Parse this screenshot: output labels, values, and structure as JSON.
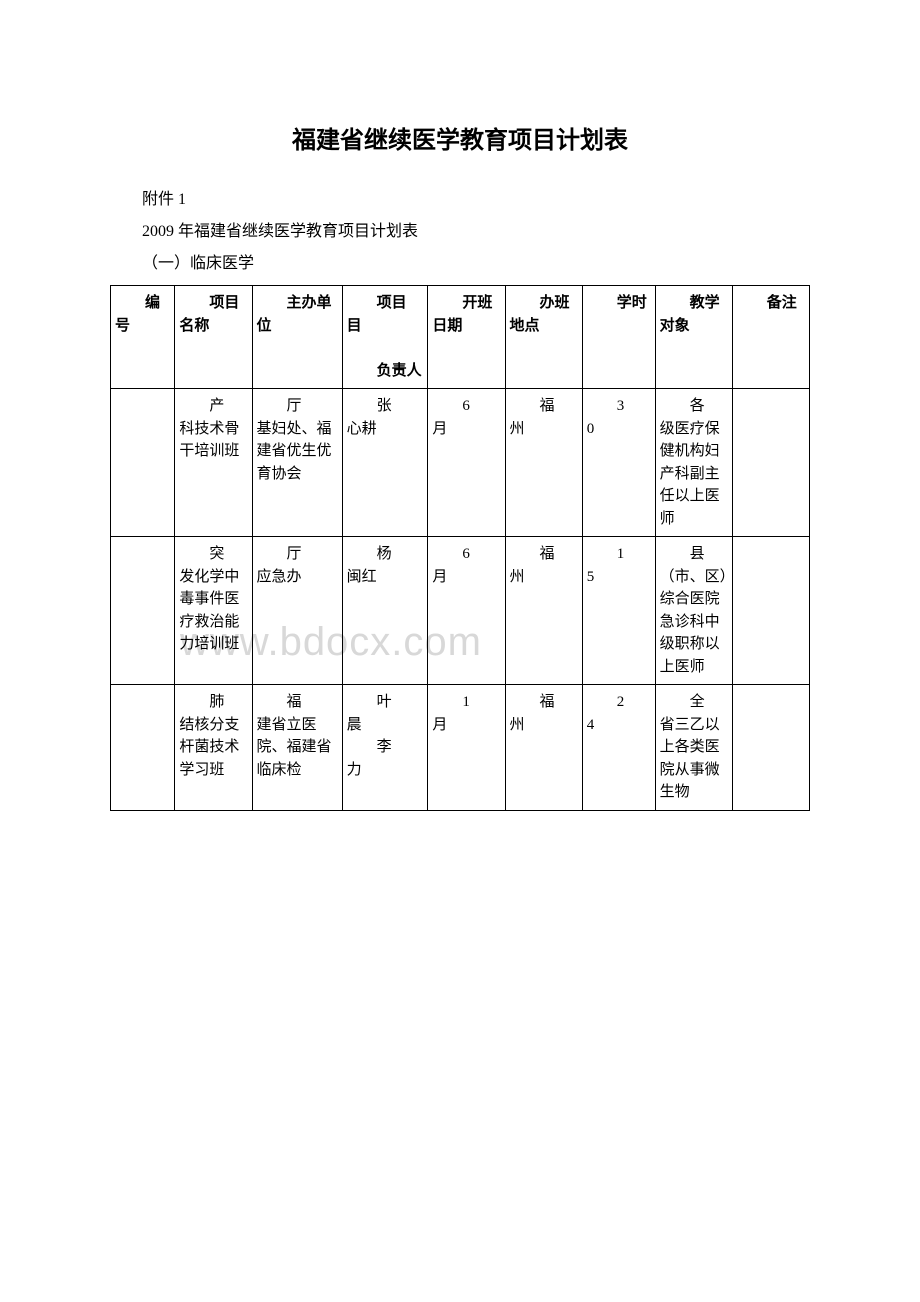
{
  "title": "福建省继续医学教育项目计划表",
  "subtitle1": "附件 1",
  "subtitle2": "2009 年福建省继续医学教育项目计划表",
  "subtitle3": "（一）临床医学",
  "watermark": "www.bdocx.com",
  "table": {
    "headers": [
      "编号",
      "项目名称",
      "主办单位",
      "项目",
      "负责人",
      "开班日期",
      "办班地点",
      "学时",
      "教学对象",
      "备注"
    ],
    "header_line2": "负责人",
    "rows": [
      {
        "col0": "",
        "col1_indent": "产",
        "col1_rest": "科技术骨干培训班",
        "col2_indent": "厅",
        "col2_rest": "基妇处、福建省优生优育协会",
        "col3_indent": "张",
        "col3_rest": "心耕",
        "col4_indent": "6",
        "col4_rest": "月",
        "col5_indent": "福",
        "col5_rest": "州",
        "col6_indent": "3",
        "col6_rest": "0",
        "col7_indent": "各",
        "col7_rest": "级医疗保健机构妇产科副主任以上医师",
        "col8": ""
      },
      {
        "col0": "",
        "col1_indent": "突",
        "col1_rest": "发化学中毒事件医疗救治能力培训班",
        "col2_indent": "厅",
        "col2_rest": "应急办",
        "col3_indent": "杨",
        "col3_rest": "闽红",
        "col4_indent": "6",
        "col4_rest": "月",
        "col5_indent": "福",
        "col5_rest": "州",
        "col6_indent": "1",
        "col6_rest": "5",
        "col7_indent": "县",
        "col7_rest": "（市、区）综合医院急诊科中级职称以上医师",
        "col8": ""
      },
      {
        "col0": "",
        "col1_indent": "肺",
        "col1_rest": "结核分支杆菌技术学习班",
        "col2_indent": "福",
        "col2_rest": "建省立医院、福建省临床检",
        "col3_indent": "叶",
        "col3_rest": "晨",
        "col3_indent2": "李",
        "col3_rest2": "力",
        "col4_indent": "1",
        "col4_rest": "月",
        "col5_indent": "福",
        "col5_rest": "州",
        "col6_indent": "2",
        "col6_rest": "4",
        "col7_indent": "全",
        "col7_rest": "省三乙以上各类医院从事微生物",
        "col8": ""
      }
    ]
  }
}
